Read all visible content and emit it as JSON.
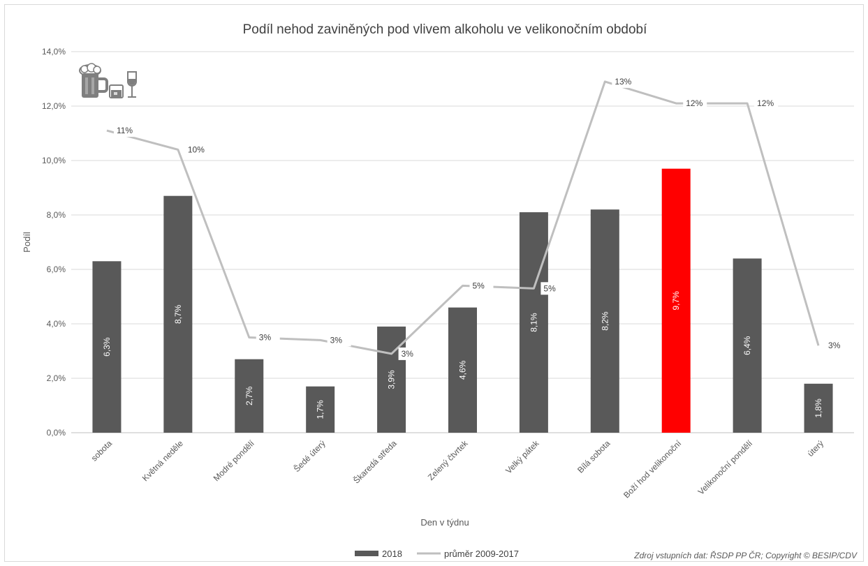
{
  "chart_data": {
    "type": "bar",
    "title": "Podíl nehod zaviněných pod vlivem alkoholu ve velikonočním období",
    "xlabel": "Den v týdnu",
    "ylabel": "Podíl",
    "ylim": [
      0,
      14
    ],
    "yticks": [
      "0,0%",
      "2,0%",
      "4,0%",
      "6,0%",
      "8,0%",
      "10,0%",
      "12,0%",
      "14,0%"
    ],
    "grid": true,
    "legend_position": "bottom",
    "categories": [
      "sobota",
      "Květná neděle",
      "Modré pondělí",
      "Šedé úterý",
      "Škaredá středa",
      "Zelený čtvrtek",
      "Velký pátek",
      "Bílá sobota",
      "Boží hod velikonoční",
      "Velikonoční pondělí",
      "úterý"
    ],
    "series": [
      {
        "name": "2018",
        "kind": "bar",
        "color": "#595959",
        "highlight_color": "#ff0000",
        "highlight_index": 8,
        "values": [
          6.3,
          8.7,
          2.7,
          1.7,
          3.9,
          4.6,
          8.1,
          8.2,
          9.7,
          6.4,
          1.8
        ],
        "labels": [
          "6,3%",
          "8,7%",
          "2,7%",
          "1,7%",
          "3,9%",
          "4,6%",
          "8,1%",
          "8,2%",
          "9,7%",
          "6,4%",
          "1,8%"
        ]
      },
      {
        "name": "průměr 2009-2017",
        "kind": "line",
        "color": "#bfbfbf",
        "values": [
          11.1,
          10.4,
          3.5,
          3.4,
          2.9,
          5.4,
          5.3,
          12.9,
          12.1,
          12.1,
          3.2
        ],
        "labels": [
          "11%",
          "10%",
          "3%",
          "3%",
          "3%",
          "5%",
          "5%",
          "13%",
          "12%",
          "12%",
          "3%"
        ]
      }
    ],
    "source_note": "Zdroj vstupních dat: ŘSDP PP ČR; Copyright © BESIP/CDV",
    "icon": "beer-mug-glass-wine-icon"
  }
}
